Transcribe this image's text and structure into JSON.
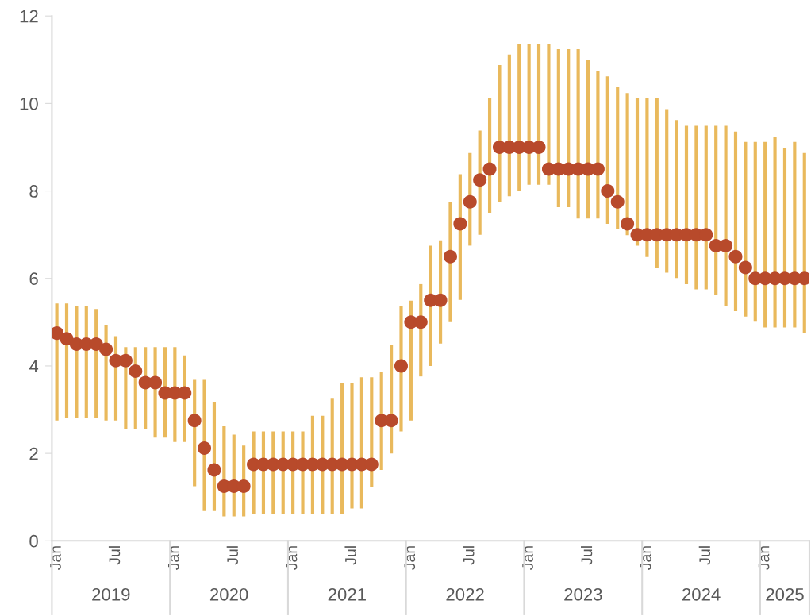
{
  "chart_data": {
    "type": "scatter",
    "categories": [
      "Jan",
      null,
      null,
      null,
      null,
      null,
      "Jul",
      null,
      null,
      null,
      null,
      null,
      "Jan",
      null,
      null,
      null,
      null,
      null,
      "Jul",
      null,
      null,
      null,
      null,
      null,
      "Jan",
      null,
      null,
      null,
      null,
      null,
      "Jul",
      null,
      null,
      null,
      null,
      null,
      "Jan",
      null,
      null,
      null,
      null,
      null,
      "Jul",
      null,
      null,
      null,
      null,
      null,
      "Jan",
      null,
      null,
      null,
      null,
      null,
      "Jul",
      null,
      null,
      null,
      null,
      null,
      "Jan",
      null,
      null,
      null,
      null,
      null,
      "Jul",
      null,
      null,
      null,
      null,
      null,
      "Jan",
      null,
      null,
      null,
      null
    ],
    "series": [
      {
        "color": "#b84a2b",
        "values": [
          4.75,
          4.62,
          4.5,
          4.5,
          4.5,
          4.38,
          4.12,
          4.12,
          3.88,
          3.62,
          3.62,
          3.38,
          3.38,
          3.38,
          2.75,
          2.12,
          1.62,
          1.25,
          1.25,
          1.25,
          1.75,
          1.75,
          1.75,
          1.75,
          1.75,
          1.75,
          1.75,
          1.75,
          1.75,
          1.75,
          1.75,
          1.75,
          1.75,
          2.75,
          2.75,
          4.0,
          5.0,
          5.0,
          5.5,
          5.5,
          6.5,
          7.25,
          7.75,
          8.25,
          8.5,
          9.0,
          9.0,
          9.0,
          9.0,
          9.0,
          8.5,
          8.5,
          8.5,
          8.5,
          8.5,
          8.5,
          8.0,
          7.75,
          7.25,
          7.0,
          7.0,
          7.0,
          7.0,
          7.0,
          7.0,
          7.0,
          7.0,
          6.75,
          6.75,
          6.5,
          6.25,
          6.0,
          6.0,
          6.0,
          6.0,
          6.0,
          6.0
        ],
        "errors": [
          [
            2.75,
            5.43
          ],
          [
            2.82,
            5.43
          ],
          [
            2.82,
            5.37
          ],
          [
            2.82,
            5.37
          ],
          [
            2.82,
            5.3
          ],
          [
            2.75,
            4.93
          ],
          [
            2.75,
            4.68
          ],
          [
            2.56,
            4.43
          ],
          [
            2.56,
            4.43
          ],
          [
            2.56,
            4.43
          ],
          [
            2.36,
            4.43
          ],
          [
            2.36,
            4.43
          ],
          [
            2.26,
            4.43
          ],
          [
            2.26,
            4.24
          ],
          [
            1.25,
            3.68
          ],
          [
            0.68,
            3.68
          ],
          [
            0.68,
            3.18
          ],
          [
            0.56,
            2.62
          ],
          [
            0.56,
            2.43
          ],
          [
            0.56,
            2.18
          ],
          [
            0.62,
            2.5
          ],
          [
            0.62,
            2.5
          ],
          [
            0.62,
            2.5
          ],
          [
            0.62,
            2.5
          ],
          [
            0.62,
            2.5
          ],
          [
            0.62,
            2.5
          ],
          [
            0.62,
            2.86
          ],
          [
            0.62,
            2.86
          ],
          [
            0.62,
            3.25
          ],
          [
            0.62,
            3.62
          ],
          [
            0.74,
            3.62
          ],
          [
            0.74,
            3.74
          ],
          [
            1.24,
            3.74
          ],
          [
            1.62,
            3.86
          ],
          [
            2.0,
            4.49
          ],
          [
            2.5,
            5.37
          ],
          [
            2.75,
            5.49
          ],
          [
            3.76,
            5.87
          ],
          [
            4.0,
            6.75
          ],
          [
            4.51,
            6.87
          ],
          [
            5.0,
            7.74
          ],
          [
            5.51,
            8.38
          ],
          [
            6.75,
            8.87
          ],
          [
            7.0,
            9.38
          ],
          [
            7.5,
            10.12
          ],
          [
            7.75,
            10.88
          ],
          [
            7.88,
            11.12
          ],
          [
            8.0,
            11.37
          ],
          [
            8.14,
            11.37
          ],
          [
            8.14,
            11.37
          ],
          [
            8.14,
            11.37
          ],
          [
            7.63,
            11.24
          ],
          [
            7.63,
            11.24
          ],
          [
            7.37,
            11.24
          ],
          [
            7.37,
            11.0
          ],
          [
            7.37,
            10.74
          ],
          [
            7.25,
            10.62
          ],
          [
            7.13,
            10.37
          ],
          [
            6.99,
            10.24
          ],
          [
            6.75,
            10.12
          ],
          [
            6.49,
            10.12
          ],
          [
            6.25,
            10.12
          ],
          [
            6.13,
            9.87
          ],
          [
            6.01,
            9.62
          ],
          [
            5.87,
            9.49
          ],
          [
            5.75,
            9.49
          ],
          [
            5.75,
            9.49
          ],
          [
            5.63,
            9.49
          ],
          [
            5.38,
            9.49
          ],
          [
            5.25,
            9.36
          ],
          [
            5.13,
            9.12
          ],
          [
            5.01,
            9.12
          ],
          [
            4.88,
            9.12
          ],
          [
            4.88,
            9.24
          ],
          [
            4.88,
            8.99
          ],
          [
            4.88,
            9.12
          ],
          [
            4.75,
            8.87
          ]
        ]
      }
    ],
    "annotations": [
      "2019",
      "2020",
      "2021",
      "2022",
      "2023",
      "2024",
      "2025"
    ],
    "ylim": [
      0,
      12
    ],
    "yticks": [
      0,
      2,
      4,
      6,
      8,
      10,
      12
    ],
    "marker": "circle",
    "grid": false
  }
}
